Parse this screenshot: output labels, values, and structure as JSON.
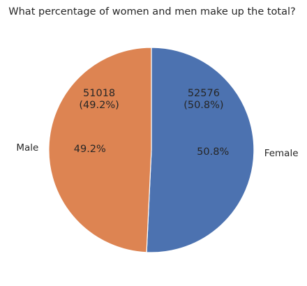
{
  "chart_data": {
    "type": "pie",
    "title": "What percentage of women and men make up the total?",
    "start_angle_deg": 90,
    "direction": "clockwise",
    "slices": [
      {
        "name": "Female",
        "value": 52576,
        "count_label": "52576",
        "percent_label": "(50.8%)",
        "inner_label": "50.8%",
        "color": "#4c72b0"
      },
      {
        "name": "Male",
        "value": 51018,
        "count_label": "51018",
        "percent_label": "(49.2%)",
        "inner_label": "49.2%",
        "color": "#dd8452"
      }
    ]
  }
}
